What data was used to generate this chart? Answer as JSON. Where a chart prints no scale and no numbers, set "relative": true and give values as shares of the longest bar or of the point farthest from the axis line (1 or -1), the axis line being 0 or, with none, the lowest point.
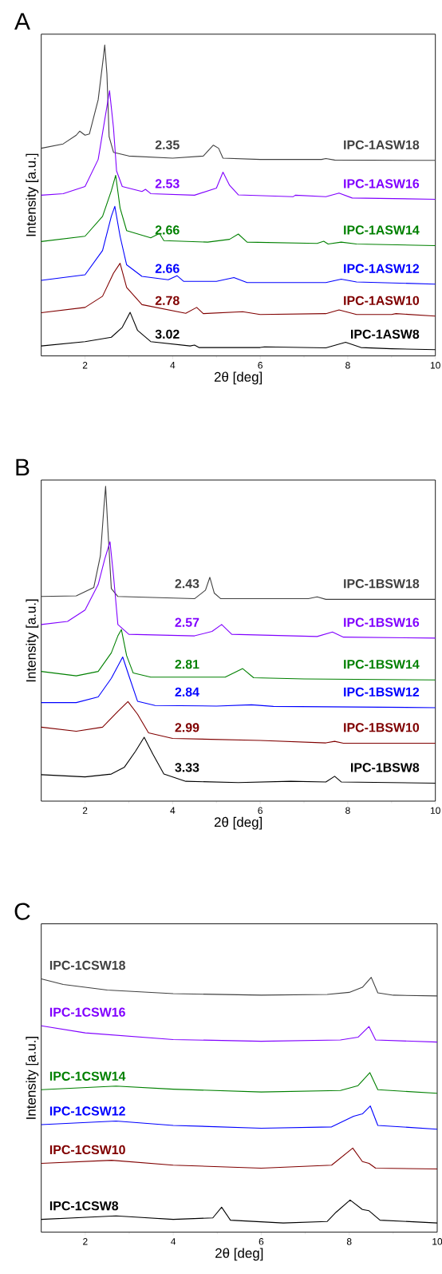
{
  "chart_data": [
    {
      "type": "line",
      "title": "A",
      "xlabel": "2θ [deg]",
      "ylabel": "Intensity [a.u.]",
      "relative": true,
      "xlim": [
        1,
        10
      ],
      "xticks": [
        2,
        4,
        6,
        8,
        10
      ],
      "annotations": [
        "2.35",
        "2.53",
        "2.66",
        "2.66",
        "2.78",
        "3.02"
      ],
      "series": [
        {
          "name": "IPC-1ASW18",
          "color": "#404040",
          "x": [
            1.0,
            1.5,
            1.8,
            1.88,
            2.0,
            2.1,
            2.3,
            2.42,
            2.45,
            2.5,
            2.55,
            2.65,
            3.0,
            4.0,
            4.7,
            4.93,
            5.05,
            5.15,
            6.0,
            7.4,
            7.5,
            7.7,
            10
          ],
          "values": [
            0.668,
            0.682,
            0.71,
            0.723,
            0.71,
            0.714,
            0.824,
            0.962,
            1.0,
            0.907,
            0.705,
            0.655,
            0.643,
            0.636,
            0.643,
            0.678,
            0.668,
            0.636,
            0.632,
            0.632,
            0.635,
            0.63,
            0.629
          ]
        },
        {
          "name": "IPC-1ASW16",
          "color": "#8000ff",
          "x": [
            1.0,
            1.5,
            2.0,
            2.3,
            2.45,
            2.56,
            2.65,
            2.72,
            2.85,
            3.3,
            3.38,
            3.5,
            4.5,
            5.0,
            5.15,
            5.3,
            5.5,
            6.75,
            6.8,
            7.5,
            7.8,
            8.1,
            10
          ],
          "values": [
            0.517,
            0.522,
            0.545,
            0.632,
            0.76,
            0.853,
            0.733,
            0.595,
            0.545,
            0.529,
            0.536,
            0.522,
            0.517,
            0.54,
            0.591,
            0.549,
            0.518,
            0.512,
            0.517,
            0.512,
            0.524,
            0.508,
            0.504
          ]
        },
        {
          "name": "IPC-1ASW14",
          "color": "#008000",
          "x": [
            1.0,
            2.0,
            2.4,
            2.6,
            2.7,
            2.8,
            2.95,
            3.5,
            3.7,
            3.8,
            4.8,
            5.3,
            5.5,
            5.7,
            7.3,
            7.45,
            7.55,
            7.85,
            8.2,
            10
          ],
          "values": [
            0.368,
            0.385,
            0.449,
            0.531,
            0.581,
            0.476,
            0.403,
            0.38,
            0.394,
            0.371,
            0.366,
            0.375,
            0.392,
            0.366,
            0.362,
            0.369,
            0.36,
            0.366,
            0.36,
            0.355
          ]
        },
        {
          "name": "IPC-1ASW12",
          "color": "#0000ff",
          "x": [
            1.0,
            2.0,
            2.4,
            2.6,
            2.68,
            2.8,
            2.95,
            3.3,
            3.9,
            4.1,
            4.25,
            5.0,
            5.4,
            5.7,
            7.5,
            7.85,
            8.2,
            10
          ],
          "values": [
            0.243,
            0.261,
            0.339,
            0.449,
            0.481,
            0.385,
            0.293,
            0.256,
            0.245,
            0.258,
            0.24,
            0.24,
            0.252,
            0.236,
            0.236,
            0.247,
            0.238,
            0.231
          ]
        },
        {
          "name": "IPC-1ASW10",
          "color": "#800000",
          "x": [
            1.0,
            2.0,
            2.4,
            2.65,
            2.8,
            2.95,
            3.3,
            4.3,
            4.55,
            4.7,
            5.6,
            6.0,
            7.5,
            7.8,
            8.2,
            9.0,
            9.1,
            10
          ],
          "values": [
            0.139,
            0.156,
            0.192,
            0.266,
            0.298,
            0.22,
            0.165,
            0.137,
            0.156,
            0.136,
            0.142,
            0.133,
            0.136,
            0.148,
            0.133,
            0.133,
            0.136,
            0.128
          ]
        },
        {
          "name": "IPC-1ASW8",
          "color": "#000000",
          "x": [
            1.0,
            2.0,
            2.6,
            2.85,
            3.03,
            3.2,
            3.5,
            4.4,
            4.5,
            4.6,
            6.0,
            6.1,
            7.5,
            7.95,
            8.3,
            9.0,
            10
          ],
          "values": [
            0.032,
            0.046,
            0.06,
            0.092,
            0.14,
            0.082,
            0.046,
            0.032,
            0.035,
            0.027,
            0.027,
            0.029,
            0.026,
            0.044,
            0.027,
            0.023,
            0.02
          ]
        }
      ]
    },
    {
      "type": "line",
      "title": "B",
      "xlabel": "2θ [deg]",
      "ylabel": "Intensity [a.u.]",
      "relative": true,
      "xlim": [
        1,
        10
      ],
      "xticks": [
        2,
        4,
        6,
        8,
        10
      ],
      "annotations": [
        "2.43",
        "2.57",
        "2.81",
        "2.84",
        "2.99",
        "3.33"
      ],
      "series": [
        {
          "name": "IPC-1BSW18",
          "color": "#404040",
          "x": [
            1.0,
            1.8,
            2.2,
            2.35,
            2.43,
            2.47,
            2.52,
            2.6,
            2.75,
            4.5,
            4.75,
            4.85,
            4.95,
            5.1,
            7.1,
            7.3,
            7.5,
            10
          ],
          "values": [
            0.65,
            0.652,
            0.679,
            0.779,
            0.932,
            1.0,
            0.869,
            0.675,
            0.65,
            0.643,
            0.67,
            0.711,
            0.661,
            0.643,
            0.643,
            0.649,
            0.641,
            0.641
          ]
        },
        {
          "name": "IPC-1BSW16",
          "color": "#8000ff",
          "x": [
            1.0,
            1.6,
            2.0,
            2.3,
            2.45,
            2.57,
            2.65,
            2.75,
            3.0,
            4.5,
            4.9,
            5.12,
            5.35,
            7.3,
            7.65,
            7.9,
            10
          ],
          "values": [
            0.561,
            0.571,
            0.607,
            0.688,
            0.769,
            0.824,
            0.716,
            0.561,
            0.53,
            0.525,
            0.539,
            0.561,
            0.53,
            0.523,
            0.537,
            0.521,
            0.518
          ]
        },
        {
          "name": "IPC-1BSW14",
          "color": "#008000",
          "x": [
            1.0,
            1.8,
            2.3,
            2.6,
            2.75,
            2.83,
            2.95,
            3.1,
            3.5,
            5.2,
            5.6,
            5.85,
            7.0,
            10
          ],
          "values": [
            0.412,
            0.398,
            0.412,
            0.471,
            0.525,
            0.545,
            0.462,
            0.407,
            0.394,
            0.394,
            0.421,
            0.392,
            0.388,
            0.385
          ]
        },
        {
          "name": "IPC-1BSW12",
          "color": "#0000ff",
          "x": [
            1.0,
            1.8,
            2.3,
            2.6,
            2.86,
            3.0,
            3.2,
            3.6,
            5.0,
            5.8,
            6.3,
            10
          ],
          "values": [
            0.313,
            0.313,
            0.331,
            0.39,
            0.458,
            0.399,
            0.317,
            0.304,
            0.302,
            0.306,
            0.301,
            0.297
          ]
        },
        {
          "name": "IPC-1BSW10",
          "color": "#800000",
          "x": [
            1.0,
            1.8,
            2.4,
            2.75,
            2.98,
            3.2,
            3.45,
            4.0,
            6.0,
            7.5,
            7.7,
            7.9,
            10
          ],
          "values": [
            0.235,
            0.222,
            0.235,
            0.285,
            0.316,
            0.276,
            0.217,
            0.199,
            0.193,
            0.185,
            0.19,
            0.184,
            0.184
          ]
        },
        {
          "name": "IPC-1BSW8",
          "color": "#000000",
          "x": [
            1.0,
            2.0,
            2.6,
            2.9,
            3.15,
            3.35,
            3.55,
            3.8,
            4.3,
            5.5,
            6.7,
            7.5,
            7.7,
            7.85,
            10
          ],
          "values": [
            0.084,
            0.077,
            0.086,
            0.108,
            0.158,
            0.203,
            0.149,
            0.086,
            0.063,
            0.059,
            0.063,
            0.061,
            0.079,
            0.061,
            0.057
          ]
        }
      ]
    },
    {
      "type": "line",
      "title": "C",
      "xlabel": "2θ [deg]",
      "ylabel": "Intensity [a.u.]",
      "relative": true,
      "xlim": [
        1,
        10
      ],
      "xticks": [
        2,
        4,
        6,
        8,
        10
      ],
      "series": [
        {
          "name": "IPC-1CSW18",
          "color": "#404040",
          "x": [
            1.0,
            1.5,
            2.5,
            4.0,
            6.0,
            7.5,
            8.0,
            8.3,
            8.5,
            8.65,
            9.0,
            10
          ],
          "values": [
            0.994,
            0.972,
            0.95,
            0.936,
            0.93,
            0.933,
            0.941,
            0.961,
            1.0,
            0.939,
            0.93,
            0.927
          ]
        },
        {
          "name": "IPC-1CSW16",
          "color": "#8000ff",
          "x": [
            1.0,
            2.0,
            4.0,
            6.0,
            7.8,
            8.2,
            8.45,
            8.6,
            10
          ],
          "values": [
            0.81,
            0.782,
            0.756,
            0.749,
            0.754,
            0.765,
            0.807,
            0.754,
            0.746
          ]
        },
        {
          "name": "IPC-1CSW14",
          "color": "#008000",
          "x": [
            1.0,
            2.7,
            4.0,
            6.0,
            7.8,
            8.2,
            8.47,
            8.65,
            10
          ],
          "values": [
            0.559,
            0.573,
            0.561,
            0.55,
            0.556,
            0.575,
            0.626,
            0.559,
            0.545
          ]
        },
        {
          "name": "IPC-1CSW12",
          "color": "#0000ff",
          "x": [
            1.0,
            2.7,
            4.0,
            6.0,
            7.6,
            8.1,
            8.3,
            8.48,
            8.65,
            10
          ],
          "values": [
            0.422,
            0.436,
            0.419,
            0.408,
            0.413,
            0.455,
            0.464,
            0.495,
            0.419,
            0.404
          ]
        },
        {
          "name": "IPC-1CSW10",
          "color": "#800000",
          "x": [
            1.0,
            2.6,
            4.0,
            6.0,
            7.6,
            8.08,
            8.3,
            8.45,
            8.6,
            10
          ],
          "values": [
            0.27,
            0.282,
            0.263,
            0.251,
            0.263,
            0.33,
            0.277,
            0.27,
            0.251,
            0.248
          ]
        },
        {
          "name": "IPC-1CSW8",
          "color": "#000000",
          "x": [
            1.0,
            2.7,
            4.0,
            4.9,
            5.1,
            5.3,
            6.5,
            7.5,
            7.7,
            8.02,
            8.3,
            8.45,
            8.7,
            10
          ],
          "values": [
            0.05,
            0.064,
            0.05,
            0.056,
            0.098,
            0.047,
            0.036,
            0.042,
            0.078,
            0.126,
            0.089,
            0.084,
            0.047,
            0.036
          ]
        }
      ]
    }
  ]
}
